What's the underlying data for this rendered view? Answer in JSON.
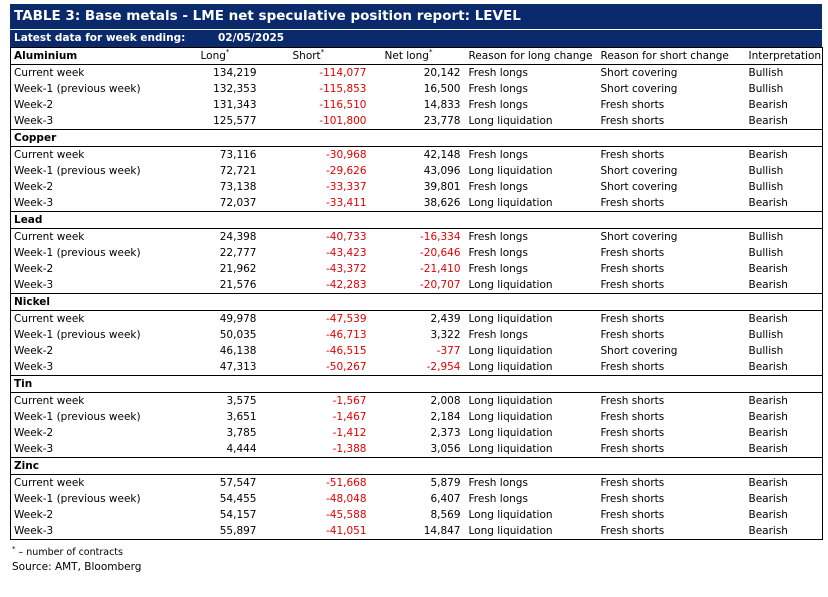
{
  "title": "TABLE 3: Base metals - LME net speculative position report: LEVEL",
  "latest_label": "Latest data for week ending:",
  "latest_date": "02/05/2025",
  "columns": {
    "long": "Long",
    "short": "Short",
    "net_long": "Net long",
    "reason_long": "Reason for long change",
    "reason_short": "Reason for short change",
    "interpretation": "Interpretation",
    "asterisk": "*"
  },
  "metals": [
    {
      "name": "Aluminium",
      "rows": [
        {
          "label": "Current week",
          "long": "134,219",
          "short": "-114,077",
          "net": "20,142",
          "rl": "Fresh longs",
          "rs": "Short covering",
          "int": "Bullish"
        },
        {
          "label": "Week-1 (previous week)",
          "long": "132,353",
          "short": "-115,853",
          "net": "16,500",
          "rl": "Fresh longs",
          "rs": "Short covering",
          "int": "Bullish"
        },
        {
          "label": "Week-2",
          "long": "131,343",
          "short": "-116,510",
          "net": "14,833",
          "rl": "Fresh longs",
          "rs": "Fresh shorts",
          "int": "Bearish"
        },
        {
          "label": "Week-3",
          "long": "125,577",
          "short": "-101,800",
          "net": "23,778",
          "rl": "Long liquidation",
          "rs": "Fresh shorts",
          "int": "Bearish"
        }
      ]
    },
    {
      "name": "Copper",
      "rows": [
        {
          "label": "Current week",
          "long": "73,116",
          "short": "-30,968",
          "net": "42,148",
          "rl": "Fresh longs",
          "rs": "Fresh shorts",
          "int": "Bearish"
        },
        {
          "label": "Week-1 (previous week)",
          "long": "72,721",
          "short": "-29,626",
          "net": "43,096",
          "rl": "Long liquidation",
          "rs": "Short covering",
          "int": "Bullish"
        },
        {
          "label": "Week-2",
          "long": "73,138",
          "short": "-33,337",
          "net": "39,801",
          "rl": "Fresh longs",
          "rs": "Short covering",
          "int": "Bullish"
        },
        {
          "label": "Week-3",
          "long": "72,037",
          "short": "-33,411",
          "net": "38,626",
          "rl": "Long liquidation",
          "rs": "Fresh shorts",
          "int": "Bearish"
        }
      ]
    },
    {
      "name": "Lead",
      "rows": [
        {
          "label": "Current week",
          "long": "24,398",
          "short": "-40,733",
          "net": "-16,334",
          "rl": "Fresh longs",
          "rs": "Short covering",
          "int": "Bullish"
        },
        {
          "label": "Week-1 (previous week)",
          "long": "22,777",
          "short": "-43,423",
          "net": "-20,646",
          "rl": "Fresh longs",
          "rs": "Fresh shorts",
          "int": "Bullish"
        },
        {
          "label": "Week-2",
          "long": "21,962",
          "short": "-43,372",
          "net": "-21,410",
          "rl": "Fresh longs",
          "rs": "Fresh shorts",
          "int": "Bearish"
        },
        {
          "label": "Week-3",
          "long": "21,576",
          "short": "-42,283",
          "net": "-20,707",
          "rl": "Long liquidation",
          "rs": "Fresh shorts",
          "int": "Bearish"
        }
      ]
    },
    {
      "name": "Nickel",
      "rows": [
        {
          "label": "Current week",
          "long": "49,978",
          "short": "-47,539",
          "net": "2,439",
          "rl": "Long liquidation",
          "rs": "Fresh shorts",
          "int": "Bearish"
        },
        {
          "label": "Week-1 (previous week)",
          "long": "50,035",
          "short": "-46,713",
          "net": "3,322",
          "rl": "Fresh longs",
          "rs": "Fresh shorts",
          "int": "Bullish"
        },
        {
          "label": "Week-2",
          "long": "46,138",
          "short": "-46,515",
          "net": "-377",
          "rl": "Long liquidation",
          "rs": "Short covering",
          "int": "Bullish"
        },
        {
          "label": "Week-3",
          "long": "47,313",
          "short": "-50,267",
          "net": "-2,954",
          "rl": "Long liquidation",
          "rs": "Fresh shorts",
          "int": "Bearish"
        }
      ]
    },
    {
      "name": "Tin",
      "rows": [
        {
          "label": "Current week",
          "long": "3,575",
          "short": "-1,567",
          "net": "2,008",
          "rl": "Long liquidation",
          "rs": "Fresh shorts",
          "int": "Bearish"
        },
        {
          "label": "Week-1 (previous week)",
          "long": "3,651",
          "short": "-1,467",
          "net": "2,184",
          "rl": "Long liquidation",
          "rs": "Fresh shorts",
          "int": "Bearish"
        },
        {
          "label": "Week-2",
          "long": "3,785",
          "short": "-1,412",
          "net": "2,373",
          "rl": "Long liquidation",
          "rs": "Fresh shorts",
          "int": "Bearish"
        },
        {
          "label": "Week-3",
          "long": "4,444",
          "short": "-1,388",
          "net": "3,056",
          "rl": "Long liquidation",
          "rs": "Fresh shorts",
          "int": "Bearish"
        }
      ]
    },
    {
      "name": "Zinc",
      "rows": [
        {
          "label": "Current week",
          "long": "57,547",
          "short": "-51,668",
          "net": "5,879",
          "rl": "Fresh longs",
          "rs": "Fresh shorts",
          "int": "Bearish"
        },
        {
          "label": "Week-1 (previous week)",
          "long": "54,455",
          "short": "-48,048",
          "net": "6,407",
          "rl": "Fresh longs",
          "rs": "Fresh shorts",
          "int": "Bearish"
        },
        {
          "label": "Week-2",
          "long": "54,157",
          "short": "-45,588",
          "net": "8,569",
          "rl": "Long liquidation",
          "rs": "Fresh shorts",
          "int": "Bearish"
        },
        {
          "label": "Week-3",
          "long": "55,897",
          "short": "-41,051",
          "net": "14,847",
          "rl": "Long liquidation",
          "rs": "Fresh shorts",
          "int": "Bearish"
        }
      ]
    }
  ],
  "footnote_marker": "*",
  "footnote": " – number of contracts",
  "source": "Source: AMT, Bloomberg",
  "colors": {
    "header_bg": "#0b2a6b",
    "negative": "#e00000"
  }
}
